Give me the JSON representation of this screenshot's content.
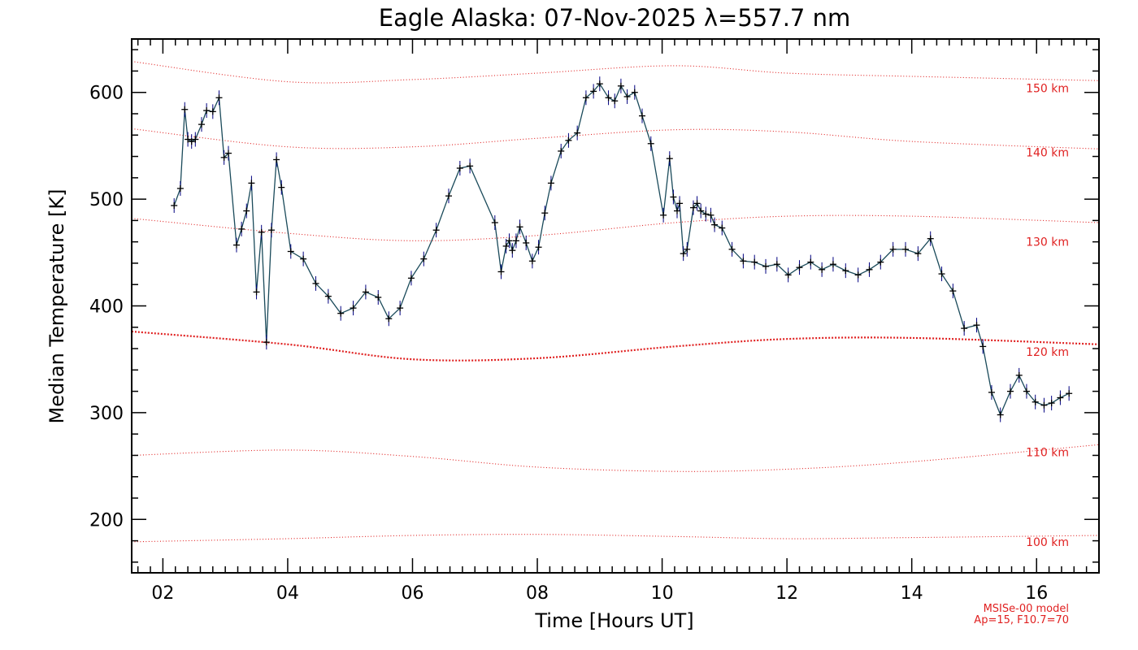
{
  "chart_data": {
    "type": "line",
    "title": "Eagle Alaska: 07-Nov-2025 λ=557.7 nm",
    "xlabel": "Time [Hours UT]",
    "ylabel": "Median Temperature [K]",
    "xlim": [
      1.5,
      17.0
    ],
    "ylim": [
      150,
      650
    ],
    "xticks": [
      {
        "value": 2,
        "label": "02"
      },
      {
        "value": 4,
        "label": "04"
      },
      {
        "value": 6,
        "label": "06"
      },
      {
        "value": 8,
        "label": "08"
      },
      {
        "value": 10,
        "label": "10"
      },
      {
        "value": 12,
        "label": "12"
      },
      {
        "value": 14,
        "label": "14"
      },
      {
        "value": 16,
        "label": "16"
      }
    ],
    "yticks": [
      200,
      300,
      400,
      500,
      600
    ],
    "grid": false,
    "line_color": "#1a4a5a",
    "marker_color": "#000080",
    "model_color": "#e02020",
    "series": [
      {
        "points": [
          [
            2.18,
            494
          ],
          [
            2.28,
            510
          ],
          [
            2.35,
            584
          ],
          [
            2.4,
            556
          ],
          [
            2.46,
            554
          ],
          [
            2.52,
            556
          ],
          [
            2.62,
            570
          ],
          [
            2.7,
            583
          ],
          [
            2.8,
            582
          ],
          [
            2.9,
            595
          ],
          [
            2.98,
            539
          ],
          [
            3.05,
            543
          ],
          [
            3.18,
            457
          ],
          [
            3.26,
            472
          ],
          [
            3.34,
            489
          ],
          [
            3.42,
            515
          ],
          [
            3.5,
            413
          ],
          [
            3.58,
            469
          ],
          [
            3.66,
            366
          ],
          [
            3.74,
            471
          ],
          [
            3.82,
            537
          ],
          [
            3.9,
            511
          ],
          [
            4.05,
            451
          ],
          [
            4.25,
            444
          ],
          [
            4.45,
            421
          ],
          [
            4.65,
            409
          ],
          [
            4.85,
            393
          ],
          [
            5.05,
            398
          ],
          [
            5.25,
            413
          ],
          [
            5.45,
            408
          ],
          [
            5.62,
            388
          ],
          [
            5.8,
            398
          ],
          [
            5.98,
            426
          ],
          [
            6.18,
            444
          ],
          [
            6.38,
            471
          ],
          [
            6.58,
            503
          ],
          [
            6.76,
            529
          ],
          [
            6.92,
            531
          ],
          [
            7.32,
            478
          ],
          [
            7.42,
            432
          ],
          [
            7.5,
            456
          ],
          [
            7.55,
            461
          ],
          [
            7.6,
            452
          ],
          [
            7.66,
            461
          ],
          [
            7.72,
            474
          ],
          [
            7.82,
            459
          ],
          [
            7.92,
            442
          ],
          [
            8.02,
            455
          ],
          [
            8.12,
            487
          ],
          [
            8.22,
            515
          ],
          [
            8.38,
            545
          ],
          [
            8.5,
            555
          ],
          [
            8.64,
            562
          ],
          [
            8.78,
            595
          ],
          [
            8.9,
            601
          ],
          [
            9.0,
            608
          ],
          [
            9.14,
            595
          ],
          [
            9.24,
            592
          ],
          [
            9.34,
            606
          ],
          [
            9.44,
            596
          ],
          [
            9.56,
            600
          ],
          [
            9.68,
            578
          ],
          [
            9.82,
            552
          ],
          [
            10.02,
            485
          ],
          [
            10.12,
            538
          ],
          [
            10.18,
            502
          ],
          [
            10.24,
            489
          ],
          [
            10.28,
            496
          ],
          [
            10.34,
            449
          ],
          [
            10.4,
            453
          ],
          [
            10.5,
            492
          ],
          [
            10.56,
            496
          ],
          [
            10.62,
            489
          ],
          [
            10.7,
            486
          ],
          [
            10.78,
            485
          ],
          [
            10.84,
            476
          ],
          [
            10.96,
            473
          ],
          [
            11.12,
            453
          ],
          [
            11.3,
            442
          ],
          [
            11.48,
            441
          ],
          [
            11.66,
            437
          ],
          [
            11.84,
            439
          ],
          [
            12.02,
            429
          ],
          [
            12.2,
            436
          ],
          [
            12.38,
            441
          ],
          [
            12.56,
            434
          ],
          [
            12.74,
            439
          ],
          [
            12.94,
            433
          ],
          [
            13.14,
            429
          ],
          [
            13.32,
            434
          ],
          [
            13.5,
            441
          ],
          [
            13.7,
            453
          ],
          [
            13.9,
            453
          ],
          [
            14.1,
            449
          ],
          [
            14.3,
            463
          ],
          [
            14.48,
            430
          ],
          [
            14.66,
            414
          ],
          [
            14.84,
            379
          ],
          [
            15.04,
            382
          ],
          [
            15.14,
            362
          ],
          [
            15.28,
            319
          ],
          [
            15.42,
            298
          ],
          [
            15.58,
            320
          ],
          [
            15.72,
            335
          ],
          [
            15.84,
            320
          ],
          [
            15.98,
            310
          ],
          [
            16.12,
            307
          ],
          [
            16.24,
            309
          ],
          [
            16.38,
            314
          ],
          [
            16.52,
            318
          ]
        ]
      }
    ],
    "model_curves": [
      {
        "label": "150 km",
        "values": [
          [
            1.5,
            629
          ],
          [
            4,
            610
          ],
          [
            6,
            612
          ],
          [
            8,
            618
          ],
          [
            10.2,
            625
          ],
          [
            12,
            618
          ],
          [
            14,
            615
          ],
          [
            17,
            611
          ]
        ]
      },
      {
        "label": "140 km",
        "values": [
          [
            1.5,
            566
          ],
          [
            4,
            549
          ],
          [
            6,
            549
          ],
          [
            8,
            557
          ],
          [
            10.2,
            565
          ],
          [
            12,
            563
          ],
          [
            14,
            554
          ],
          [
            17,
            547
          ]
        ]
      },
      {
        "label": "130 km",
        "values": [
          [
            1.5,
            482
          ],
          [
            4,
            468
          ],
          [
            6,
            461
          ],
          [
            8,
            466
          ],
          [
            10.2,
            478
          ],
          [
            12,
            484
          ],
          [
            14,
            484
          ],
          [
            17,
            478
          ]
        ]
      },
      {
        "label": "120 km",
        "values": [
          [
            1.5,
            376
          ],
          [
            4,
            364
          ],
          [
            6,
            350
          ],
          [
            8,
            351
          ],
          [
            10.2,
            362
          ],
          [
            12,
            369
          ],
          [
            14,
            370
          ],
          [
            17,
            364
          ]
        ]
      },
      {
        "label": "110 km",
        "values": [
          [
            1.5,
            260
          ],
          [
            4,
            265
          ],
          [
            6,
            259
          ],
          [
            8,
            249
          ],
          [
            10.2,
            245
          ],
          [
            12,
            247
          ],
          [
            14,
            254
          ],
          [
            17,
            270
          ]
        ]
      },
      {
        "label": "100 km",
        "values": [
          [
            1.5,
            179
          ],
          [
            4,
            182
          ],
          [
            6,
            185
          ],
          [
            8,
            186
          ],
          [
            10.2,
            184
          ],
          [
            12,
            182
          ],
          [
            14,
            183
          ],
          [
            17,
            185
          ]
        ]
      }
    ],
    "model_labels": [
      {
        "label": "150 km",
        "value": 604
      },
      {
        "label": "140 km",
        "value": 544
      },
      {
        "label": "130 km",
        "value": 460
      },
      {
        "label": "120 km",
        "value": 357
      },
      {
        "label": "110 km",
        "value": 263
      },
      {
        "label": "100 km",
        "value": 179
      }
    ],
    "model_note": [
      "MSISe-00 model",
      "Ap=15, F10.7=70"
    ]
  }
}
